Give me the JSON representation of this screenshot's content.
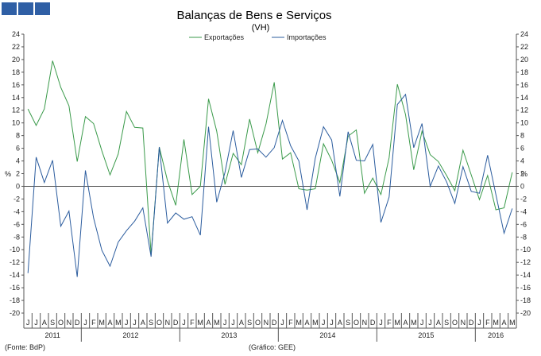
{
  "colors": {
    "exports": "#3a9a4a",
    "imports": "#2b5c9e",
    "logo": "#2f5fa5",
    "axis": "#555555"
  },
  "chart_data": {
    "type": "line",
    "title": "Balanças de Bens e Serviços",
    "subtitle": "(VH)",
    "ylabel": "%",
    "ylim": [
      -20,
      24
    ],
    "yticks": [
      -20,
      -18,
      -16,
      -14,
      -12,
      -10,
      -8,
      -6,
      -4,
      -2,
      0,
      2,
      4,
      6,
      8,
      10,
      12,
      14,
      16,
      18,
      20,
      22,
      24
    ],
    "months": [
      "J",
      "J",
      "A",
      "S",
      "O",
      "N",
      "D",
      "J",
      "F",
      "M",
      "A",
      "M",
      "J",
      "J",
      "A",
      "S",
      "O",
      "N",
      "D",
      "J",
      "F",
      "M",
      "A",
      "M",
      "J",
      "J",
      "A",
      "S",
      "O",
      "N",
      "D",
      "J",
      "F",
      "M",
      "A",
      "M",
      "J",
      "J",
      "A",
      "S",
      "O",
      "N",
      "D",
      "J",
      "F",
      "M",
      "A",
      "M",
      "J",
      "J",
      "A",
      "S",
      "O",
      "N",
      "D",
      "J",
      "F",
      "M",
      "A",
      "M"
    ],
    "years": [
      {
        "label": "2011",
        "start": 0,
        "end": 7
      },
      {
        "label": "2012",
        "start": 7,
        "end": 19
      },
      {
        "label": "2013",
        "start": 19,
        "end": 31
      },
      {
        "label": "2014",
        "start": 31,
        "end": 43
      },
      {
        "label": "2015",
        "start": 43,
        "end": 55
      },
      {
        "label": "2016",
        "start": 55,
        "end": 60
      }
    ],
    "series": [
      {
        "name": "Exportações",
        "values": [
          12.2,
          9.6,
          12.2,
          19.8,
          15.6,
          12.7,
          3.9,
          11,
          9.9,
          5.6,
          1.8,
          5.1,
          11.8,
          9.3,
          9.2,
          -10.8,
          6.2,
          0.9,
          -3,
          7.4,
          -1.3,
          0,
          13.8,
          8.7,
          0.3,
          5.2,
          3.4,
          10.6,
          5.3,
          9.8,
          16.4,
          4.3,
          5.3,
          -0.4,
          -0.6,
          -0.4,
          6.7,
          4.1,
          0.6,
          7.9,
          8.9,
          -1.1,
          1.3,
          -1.3,
          4.5,
          16.1,
          11.3,
          2.6,
          8.7,
          5,
          3.9,
          1.7,
          -0.7,
          5.7,
          1.8,
          -2.1,
          1.7,
          -3.7,
          -3.4,
          2.2
        ]
      },
      {
        "name": "Importações",
        "values": [
          -13.7,
          4.6,
          0.6,
          4.1,
          -6.3,
          -3.9,
          -14.3,
          2.5,
          -5,
          -10.1,
          -12.6,
          -8.8,
          -7,
          -5.5,
          -3.4,
          -11.1,
          6.2,
          -5.8,
          -4.2,
          -5.2,
          -4.8,
          -7.7,
          9.4,
          -2.5,
          2.2,
          8.8,
          1.4,
          5.8,
          5.9,
          4.6,
          6.1,
          10.4,
          6.4,
          4,
          -3.7,
          4.4,
          9.4,
          7.3,
          -1.6,
          8.6,
          4.1,
          4,
          6.6,
          -5.7,
          -1.7,
          12.9,
          14.5,
          6.1,
          9.9,
          0,
          3.2,
          0.7,
          -2.7,
          3.1,
          -0.8,
          -1.1,
          4.9,
          -1.3,
          -7.4,
          -3.5
        ]
      }
    ]
  },
  "footer": {
    "source": "(Fonte: BdP)",
    "credit": "(Gráfico: GEE)"
  }
}
